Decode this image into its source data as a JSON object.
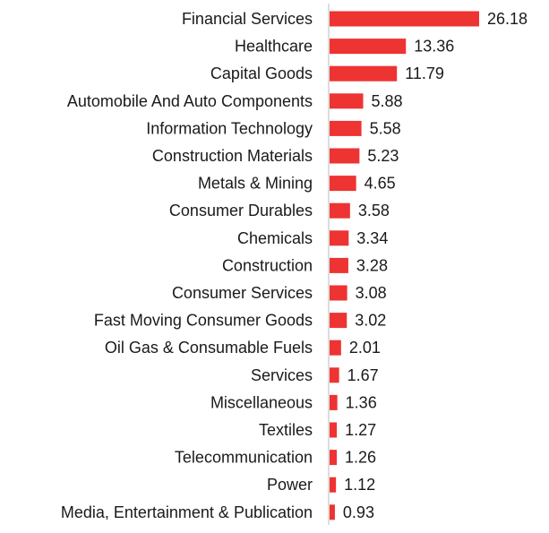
{
  "chart_data": {
    "type": "bar",
    "orientation": "horizontal",
    "title": "",
    "xlabel": "",
    "ylabel": "",
    "grid": false,
    "bar_color": "#ee3333",
    "axis_color": "#bbbbbb",
    "xlim": [
      0,
      26.18
    ],
    "categories": [
      "Financial Services",
      "Healthcare",
      "Capital Goods",
      "Automobile And Auto Components",
      "Information Technology",
      "Construction Materials",
      "Metals & Mining",
      "Consumer Durables",
      "Chemicals",
      "Construction",
      "Consumer Services",
      "Fast Moving Consumer Goods",
      "Oil Gas & Consumable Fuels",
      "Services",
      "Miscellaneous",
      "Textiles",
      "Telecommunication",
      "Power",
      "Media, Entertainment & Publication"
    ],
    "values": [
      26.18,
      13.36,
      11.79,
      5.88,
      5.58,
      5.23,
      4.65,
      3.58,
      3.34,
      3.28,
      3.08,
      3.02,
      2.01,
      1.67,
      1.36,
      1.27,
      1.26,
      1.12,
      0.93
    ],
    "value_labels": [
      "26.18",
      "13.36",
      "11.79",
      "5.88",
      "5.58",
      "5.23",
      "4.65",
      "3.58",
      "3.34",
      "3.28",
      "3.08",
      "3.02",
      "2.01",
      "1.67",
      "1.36",
      "1.27",
      "1.26",
      "1.12",
      "0.93"
    ]
  }
}
